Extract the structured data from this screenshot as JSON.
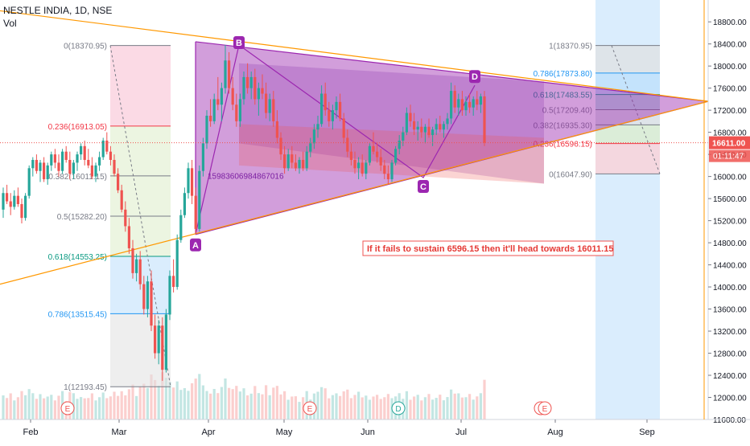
{
  "header": {
    "symbol": "NESTLE INDIA, 1D, NSE",
    "vol_label": "Vol"
  },
  "chart_data": {
    "type": "candlestick",
    "y_axis": {
      "ylim": [
        11600,
        19050
      ],
      "ticks": [
        11600,
        12000,
        12400,
        12800,
        13200,
        13600,
        14000,
        14400,
        14800,
        15200,
        15600,
        16000,
        16400,
        16800,
        17200,
        17600,
        18000,
        18400,
        18800
      ],
      "tick_labels": [
        "11600.00",
        "12000.00",
        "12400.00",
        "12800.00",
        "13200.00",
        "13600.00",
        "14000.00",
        "14400.00",
        "14800.00",
        "15200.00",
        "15600.00",
        "16000.00",
        "16400.00",
        "16800.00",
        "17200.00",
        "17600.00",
        "18000.00",
        "18400.00",
        "18800.00"
      ]
    },
    "x_axis": {
      "months": [
        "Feb",
        "Mar",
        "Apr",
        "May",
        "Jun",
        "Jul",
        "Aug",
        "Sep"
      ]
    },
    "last_price": "16611.00",
    "countdown": "01:11:47",
    "colors": {
      "up": "#26a69a",
      "down": "#ef5350",
      "triangle": "#9c27b0",
      "trend": "#ff9800",
      "fib_blue": "#64b5f6",
      "fib_red": "#ef5350"
    },
    "candles": [
      {
        "o": 15400,
        "h": 15800,
        "l": 15250,
        "c": 15700
      },
      {
        "o": 15700,
        "h": 15850,
        "l": 15500,
        "c": 15550
      },
      {
        "o": 15550,
        "h": 15700,
        "l": 15300,
        "c": 15450
      },
      {
        "o": 15450,
        "h": 15750,
        "l": 15400,
        "c": 15650
      },
      {
        "o": 15650,
        "h": 15800,
        "l": 15450,
        "c": 15500
      },
      {
        "o": 15500,
        "h": 15600,
        "l": 15150,
        "c": 15250
      },
      {
        "o": 15250,
        "h": 15700,
        "l": 15200,
        "c": 15650
      },
      {
        "o": 15650,
        "h": 16200,
        "l": 15600,
        "c": 16150
      },
      {
        "o": 16150,
        "h": 16350,
        "l": 16000,
        "c": 16300
      },
      {
        "o": 16300,
        "h": 16400,
        "l": 16050,
        "c": 16100
      },
      {
        "o": 16100,
        "h": 16300,
        "l": 15900,
        "c": 16250
      },
      {
        "o": 16250,
        "h": 16350,
        "l": 15900,
        "c": 15950
      },
      {
        "o": 15950,
        "h": 16250,
        "l": 15850,
        "c": 16200
      },
      {
        "o": 16200,
        "h": 16450,
        "l": 16100,
        "c": 16400
      },
      {
        "o": 16400,
        "h": 16500,
        "l": 16150,
        "c": 16250
      },
      {
        "o": 16250,
        "h": 16400,
        "l": 16000,
        "c": 16100
      },
      {
        "o": 16100,
        "h": 16500,
        "l": 16050,
        "c": 16450
      },
      {
        "o": 16450,
        "h": 16550,
        "l": 16250,
        "c": 16300
      },
      {
        "o": 16300,
        "h": 16450,
        "l": 15950,
        "c": 16050
      },
      {
        "o": 16050,
        "h": 16300,
        "l": 15950,
        "c": 16250
      },
      {
        "o": 16250,
        "h": 16450,
        "l": 16100,
        "c": 16400
      },
      {
        "o": 16400,
        "h": 16600,
        "l": 16300,
        "c": 16550
      },
      {
        "o": 16550,
        "h": 16650,
        "l": 16200,
        "c": 16300
      },
      {
        "o": 16300,
        "h": 16500,
        "l": 16150,
        "c": 16200
      },
      {
        "o": 16200,
        "h": 16350,
        "l": 15950,
        "c": 16000
      },
      {
        "o": 16000,
        "h": 16250,
        "l": 15900,
        "c": 16200
      },
      {
        "o": 16200,
        "h": 16450,
        "l": 16100,
        "c": 16350
      },
      {
        "o": 16350,
        "h": 16700,
        "l": 16300,
        "c": 16650
      },
      {
        "o": 16650,
        "h": 16800,
        "l": 16400,
        "c": 16450
      },
      {
        "o": 16450,
        "h": 16550,
        "l": 16200,
        "c": 16300
      },
      {
        "o": 16300,
        "h": 16400,
        "l": 16000,
        "c": 16050
      },
      {
        "o": 16050,
        "h": 16150,
        "l": 15700,
        "c": 15750
      },
      {
        "o": 15750,
        "h": 15850,
        "l": 15350,
        "c": 15400
      },
      {
        "o": 15400,
        "h": 15550,
        "l": 15000,
        "c": 15100
      },
      {
        "o": 15100,
        "h": 15250,
        "l": 14600,
        "c": 14700
      },
      {
        "o": 14700,
        "h": 14850,
        "l": 14150,
        "c": 14250
      },
      {
        "o": 14250,
        "h": 14600,
        "l": 14100,
        "c": 14500
      },
      {
        "o": 14500,
        "h": 14650,
        "l": 13950,
        "c": 14050
      },
      {
        "o": 14050,
        "h": 14200,
        "l": 13500,
        "c": 13600
      },
      {
        "o": 13600,
        "h": 14200,
        "l": 13450,
        "c": 14100
      },
      {
        "o": 14100,
        "h": 14300,
        "l": 13200,
        "c": 13300
      },
      {
        "o": 13300,
        "h": 13500,
        "l": 12700,
        "c": 12800
      },
      {
        "o": 12800,
        "h": 13400,
        "l": 12600,
        "c": 13300
      },
      {
        "o": 13300,
        "h": 13450,
        "l": 12300,
        "c": 12500
      },
      {
        "o": 12500,
        "h": 13600,
        "l": 12450,
        "c": 13500
      },
      {
        "o": 13500,
        "h": 14300,
        "l": 13400,
        "c": 14200
      },
      {
        "o": 14200,
        "h": 14500,
        "l": 13900,
        "c": 14000
      },
      {
        "o": 14000,
        "h": 14950,
        "l": 13950,
        "c": 14850
      },
      {
        "o": 14850,
        "h": 15400,
        "l": 14800,
        "c": 15300
      },
      {
        "o": 15300,
        "h": 15800,
        "l": 15250,
        "c": 15700
      },
      {
        "o": 15700,
        "h": 16250,
        "l": 15600,
        "c": 16150
      },
      {
        "o": 16150,
        "h": 16300,
        "l": 15500,
        "c": 15650
      },
      {
        "o": 15650,
        "h": 15800,
        "l": 14950,
        "c": 15050
      },
      {
        "o": 15050,
        "h": 16200,
        "l": 15000,
        "c": 16100
      },
      {
        "o": 16100,
        "h": 16700,
        "l": 16000,
        "c": 16600
      },
      {
        "o": 16600,
        "h": 17200,
        "l": 16500,
        "c": 17100
      },
      {
        "o": 17100,
        "h": 17400,
        "l": 16900,
        "c": 17000
      },
      {
        "o": 17000,
        "h": 17500,
        "l": 16950,
        "c": 17400
      },
      {
        "o": 17400,
        "h": 17800,
        "l": 17200,
        "c": 17300
      },
      {
        "o": 17300,
        "h": 17700,
        "l": 17000,
        "c": 17600
      },
      {
        "o": 17600,
        "h": 18380,
        "l": 17500,
        "c": 18100
      },
      {
        "o": 18100,
        "h": 18250,
        "l": 17500,
        "c": 17600
      },
      {
        "o": 17600,
        "h": 17800,
        "l": 17200,
        "c": 17300
      },
      {
        "o": 17300,
        "h": 17500,
        "l": 16900,
        "c": 17000
      },
      {
        "o": 17000,
        "h": 17500,
        "l": 16900,
        "c": 17400
      },
      {
        "o": 17400,
        "h": 17900,
        "l": 17300,
        "c": 17800
      },
      {
        "o": 17800,
        "h": 18050,
        "l": 17500,
        "c": 17600
      },
      {
        "o": 17600,
        "h": 17900,
        "l": 17400,
        "c": 17800
      },
      {
        "o": 17800,
        "h": 17950,
        "l": 17300,
        "c": 17400
      },
      {
        "o": 17400,
        "h": 17700,
        "l": 17100,
        "c": 17600
      },
      {
        "o": 17600,
        "h": 17850,
        "l": 17400,
        "c": 17500
      },
      {
        "o": 17500,
        "h": 17700,
        "l": 17050,
        "c": 17150
      },
      {
        "o": 17150,
        "h": 17500,
        "l": 17000,
        "c": 17400
      },
      {
        "o": 17400,
        "h": 17550,
        "l": 16900,
        "c": 17000
      },
      {
        "o": 17000,
        "h": 17200,
        "l": 16600,
        "c": 16700
      },
      {
        "o": 16700,
        "h": 16800,
        "l": 16300,
        "c": 16400
      },
      {
        "o": 16400,
        "h": 16550,
        "l": 16050,
        "c": 16150
      },
      {
        "o": 16150,
        "h": 16500,
        "l": 16100,
        "c": 16400
      },
      {
        "o": 16400,
        "h": 16550,
        "l": 16150,
        "c": 16250
      },
      {
        "o": 16250,
        "h": 16400,
        "l": 16100,
        "c": 16150
      },
      {
        "o": 16150,
        "h": 16350,
        "l": 16050,
        "c": 16300
      },
      {
        "o": 16300,
        "h": 16450,
        "l": 16100,
        "c": 16150
      },
      {
        "o": 16150,
        "h": 16550,
        "l": 16100,
        "c": 16450
      },
      {
        "o": 16450,
        "h": 16700,
        "l": 16350,
        "c": 16600
      },
      {
        "o": 16600,
        "h": 16950,
        "l": 16500,
        "c": 16850
      },
      {
        "o": 16850,
        "h": 17100,
        "l": 16700,
        "c": 16950
      },
      {
        "o": 16950,
        "h": 17650,
        "l": 16900,
        "c": 17500
      },
      {
        "o": 17500,
        "h": 17700,
        "l": 17100,
        "c": 17200
      },
      {
        "o": 17200,
        "h": 17350,
        "l": 16900,
        "c": 17000
      },
      {
        "o": 17000,
        "h": 17300,
        "l": 16850,
        "c": 17200
      },
      {
        "o": 17200,
        "h": 17450,
        "l": 17050,
        "c": 17350
      },
      {
        "o": 17350,
        "h": 17500,
        "l": 17000,
        "c": 17050
      },
      {
        "o": 17050,
        "h": 17150,
        "l": 16600,
        "c": 16700
      },
      {
        "o": 16700,
        "h": 16850,
        "l": 16350,
        "c": 16450
      },
      {
        "o": 16450,
        "h": 16600,
        "l": 16200,
        "c": 16300
      },
      {
        "o": 16300,
        "h": 16450,
        "l": 16050,
        "c": 16150
      },
      {
        "o": 16150,
        "h": 16350,
        "l": 15950,
        "c": 16250
      },
      {
        "o": 16250,
        "h": 16400,
        "l": 16000,
        "c": 16050
      },
      {
        "o": 16050,
        "h": 16300,
        "l": 15950,
        "c": 16250
      },
      {
        "o": 16250,
        "h": 16600,
        "l": 16200,
        "c": 16550
      },
      {
        "o": 16550,
        "h": 16800,
        "l": 16400,
        "c": 16450
      },
      {
        "o": 16450,
        "h": 16600,
        "l": 16250,
        "c": 16350
      },
      {
        "o": 16350,
        "h": 16500,
        "l": 16100,
        "c": 16200
      },
      {
        "o": 16200,
        "h": 16300,
        "l": 15950,
        "c": 16050
      },
      {
        "o": 16050,
        "h": 16200,
        "l": 15850,
        "c": 15950
      },
      {
        "o": 15950,
        "h": 16300,
        "l": 15900,
        "c": 16250
      },
      {
        "o": 16250,
        "h": 16550,
        "l": 16200,
        "c": 16500
      },
      {
        "o": 16500,
        "h": 16750,
        "l": 16400,
        "c": 16650
      },
      {
        "o": 16650,
        "h": 16900,
        "l": 16550,
        "c": 16800
      },
      {
        "o": 16800,
        "h": 17250,
        "l": 16750,
        "c": 17150
      },
      {
        "o": 17150,
        "h": 17300,
        "l": 16900,
        "c": 17000
      },
      {
        "o": 17000,
        "h": 17150,
        "l": 16750,
        "c": 16850
      },
      {
        "o": 16850,
        "h": 17000,
        "l": 16650,
        "c": 16900
      },
      {
        "o": 16900,
        "h": 17050,
        "l": 16700,
        "c": 16800
      },
      {
        "o": 16800,
        "h": 16950,
        "l": 16600,
        "c": 16900
      },
      {
        "o": 16900,
        "h": 17050,
        "l": 16700,
        "c": 16750
      },
      {
        "o": 16750,
        "h": 16900,
        "l": 16550,
        "c": 16850
      },
      {
        "o": 16850,
        "h": 17050,
        "l": 16750,
        "c": 16950
      },
      {
        "o": 16950,
        "h": 17100,
        "l": 16800,
        "c": 16850
      },
      {
        "o": 16850,
        "h": 17000,
        "l": 16700,
        "c": 16950
      },
      {
        "o": 16950,
        "h": 17150,
        "l": 16850,
        "c": 17050
      },
      {
        "o": 17050,
        "h": 17700,
        "l": 16950,
        "c": 17550
      },
      {
        "o": 17550,
        "h": 17650,
        "l": 17150,
        "c": 17250
      },
      {
        "o": 17250,
        "h": 17500,
        "l": 17100,
        "c": 17400
      },
      {
        "o": 17400,
        "h": 17550,
        "l": 17100,
        "c": 17200
      },
      {
        "o": 17200,
        "h": 17450,
        "l": 17100,
        "c": 17350
      },
      {
        "o": 17350,
        "h": 17500,
        "l": 17150,
        "c": 17250
      },
      {
        "o": 17250,
        "h": 17450,
        "l": 17100,
        "c": 17400
      },
      {
        "o": 17400,
        "h": 17550,
        "l": 17200,
        "c": 17300
      },
      {
        "o": 17300,
        "h": 17500,
        "l": 17150,
        "c": 17450
      },
      {
        "o": 17450,
        "h": 17550,
        "l": 16550,
        "c": 16611
      }
    ],
    "fib_left": [
      {
        "label": "0(18370.95)",
        "color": "#787b86"
      },
      {
        "label": "0.236(16913.05)",
        "color": "#f23645"
      },
      {
        "label": "0.382(16011.15)",
        "color": "#787b86"
      },
      {
        "label": "0.5(15282.20)",
        "color": "#787b86"
      },
      {
        "label": "0.618(14553.25)",
        "color": "#089981"
      },
      {
        "label": "0.786(13515.45)",
        "color": "#2196f3"
      },
      {
        "label": "1(12193.45)",
        "color": "#787b86"
      }
    ],
    "fib_right": [
      {
        "label": "1(18370.95)",
        "color": "#787b86"
      },
      {
        "label": "0.786(17873.80)",
        "color": "#2196f3"
      },
      {
        "label": "0.618(17483.55)",
        "color": "#089981"
      },
      {
        "label": "0.5(17209.40)",
        "color": "#787b86"
      },
      {
        "label": "0.382(16935.30)",
        "color": "#787b86"
      },
      {
        "label": "0.236(16596.15)",
        "color": "#f23645"
      },
      {
        "label": "0(16047.90)",
        "color": "#787b86"
      }
    ],
    "pattern_labels": [
      "A",
      "B",
      "C",
      "D"
    ],
    "overlay_number": "15983606984867016",
    "annotation": "If it fails to sustain 6596.15 then it'll head towards 16011.15",
    "event_markers": [
      "E",
      "E",
      "D",
      "E",
      "E"
    ]
  }
}
